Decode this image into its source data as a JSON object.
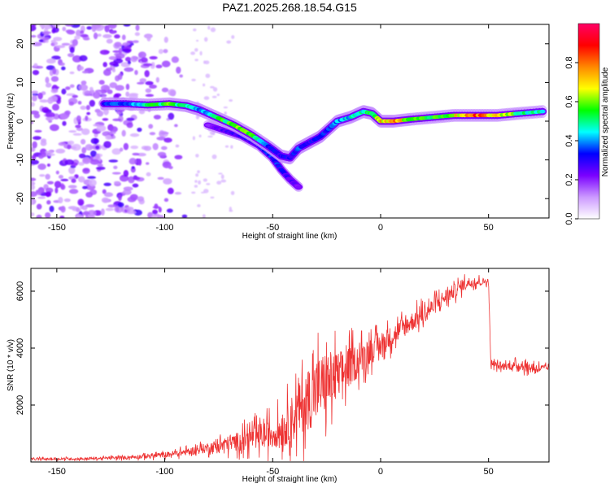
{
  "title": "PAZ1.2025.268.18.54.G15",
  "chart_data": [
    {
      "type": "heatmap",
      "name": "spectrogram",
      "xlabel": "Height of straight line (km)",
      "ylabel": "Frequency (Hz)",
      "xlim": [
        -162,
        78
      ],
      "ylim": [
        -25,
        25
      ],
      "xticks": [
        -150,
        -100,
        -50,
        0,
        50
      ],
      "yticks": [
        -20,
        -10,
        0,
        10,
        20
      ],
      "colorbar": {
        "label": "Normalized spectral amplitude",
        "range": [
          0,
          1
        ],
        "ticks": [
          "0.0",
          "0.2",
          "0.4",
          "0.6",
          "0.8"
        ],
        "tick_values": [
          0,
          0.2,
          0.4,
          0.6,
          0.8
        ],
        "colors": [
          "#ffffff",
          "#cc99ff",
          "#7a00ff",
          "#0000ff",
          "#00ffff",
          "#00ff00",
          "#ffff00",
          "#ff8800",
          "#ff0000",
          "#ff0066"
        ]
      },
      "ridge": {
        "x": [
          -128,
          -118,
          -108,
          -98,
          -90,
          -84,
          -76,
          -68,
          -60,
          -52,
          -46,
          -42,
          -38,
          -33,
          -28,
          -24,
          -20,
          -14,
          -8,
          -4,
          0,
          6,
          14,
          24,
          34,
          44,
          54,
          64,
          75
        ],
        "y": [
          4.5,
          4.5,
          4.2,
          4.5,
          4.0,
          3.0,
          1.0,
          -1.0,
          -3.5,
          -6.5,
          -9.0,
          -9.5,
          -7.0,
          -5.5,
          -4.0,
          -2.0,
          0.0,
          1.0,
          2.5,
          2.0,
          0.0,
          0.0,
          0.5,
          1.0,
          1.5,
          1.5,
          1.5,
          2.0,
          2.5
        ],
        "amplitude": [
          0.35,
          0.45,
          0.55,
          0.65,
          0.55,
          0.45,
          0.55,
          0.7,
          0.6,
          0.4,
          0.35,
          0.35,
          0.4,
          0.35,
          0.35,
          0.4,
          0.45,
          0.5,
          0.55,
          0.6,
          0.8,
          0.85,
          0.7,
          0.6,
          0.75,
          0.9,
          0.8,
          0.6,
          0.5
        ]
      },
      "secondary_branch": {
        "x": [
          -80,
          -72,
          -64,
          -56,
          -50,
          -46,
          -42,
          -38
        ],
        "y": [
          -1.0,
          -2.5,
          -4.0,
          -6.5,
          -9.5,
          -12.5,
          -15.0,
          -17.0
        ],
        "amplitude": [
          0.25,
          0.3,
          0.3,
          0.35,
          0.4,
          0.35,
          0.3,
          0.25
        ]
      },
      "noise_region_x": [
        -162,
        -88
      ]
    },
    {
      "type": "line",
      "name": "snr",
      "xlabel": "Height of straight line (km)",
      "ylabel": "SNR (10 * v/v)",
      "xlim": [
        -162,
        78
      ],
      "ylim": [
        0,
        6800
      ],
      "xticks": [
        -150,
        -100,
        -50,
        0,
        50
      ],
      "yticks": [
        2000,
        4000,
        6000
      ],
      "color": "#ee3333",
      "envelope": {
        "x": [
          -162,
          -140,
          -120,
          -100,
          -90,
          -80,
          -70,
          -60,
          -50,
          -45,
          -40,
          -35,
          -30,
          -25,
          -20,
          -15,
          -10,
          -5,
          0,
          10,
          20,
          30,
          40,
          50,
          51,
          55,
          65,
          70,
          75,
          78
        ],
        "mean": [
          100,
          110,
          150,
          250,
          350,
          500,
          650,
          850,
          1000,
          1200,
          1600,
          2100,
          2500,
          2800,
          3000,
          3300,
          3600,
          3900,
          4100,
          4700,
          5200,
          5800,
          6300,
          6350,
          3500,
          3350,
          3400,
          3300,
          3300,
          3300
        ],
        "spread": [
          50,
          50,
          70,
          120,
          150,
          220,
          350,
          500,
          650,
          800,
          1100,
          1300,
          1500,
          1400,
          1100,
          900,
          700,
          600,
          500,
          450,
          400,
          350,
          250,
          120,
          150,
          150,
          200,
          250,
          150,
          100
        ]
      }
    }
  ]
}
